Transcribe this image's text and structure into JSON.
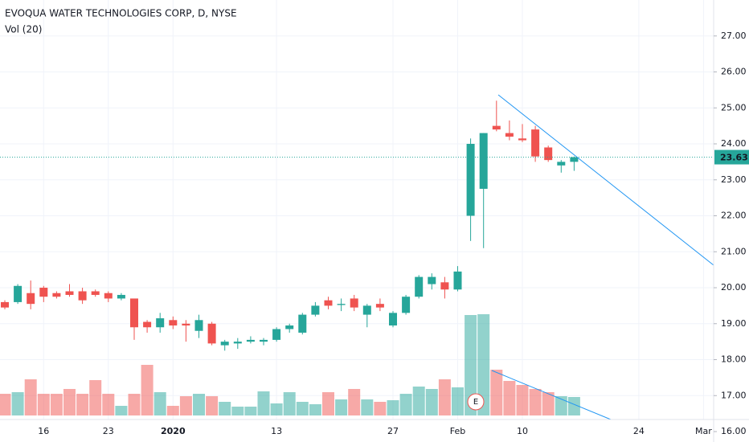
{
  "chart_data": {
    "type": "candlestick",
    "title": "EVOQUA WATER TECHNOLOGIES CORP, D, NYSE",
    "volume_label": "Vol (20)",
    "earnings_marker": "E",
    "up_color": "#26a69a",
    "down_color": "#ef5350",
    "trendline_color": "#2196f3",
    "grid": true,
    "categories": [
      null,
      null,
      null,
      "16",
      null,
      null,
      null,
      null,
      "23",
      null,
      null,
      null,
      null,
      "2020",
      null,
      null,
      null,
      null,
      null,
      null,
      null,
      "13",
      null,
      null,
      null,
      null,
      null,
      null,
      null,
      null,
      "27",
      null,
      null,
      null,
      null,
      "Feb",
      null,
      null,
      null,
      null,
      "10",
      null,
      null,
      null,
      null,
      null,
      null,
      null,
      null,
      "24",
      null,
      null,
      null,
      null,
      "Mar"
    ],
    "open": [
      19.6,
      19.6,
      19.85,
      20.0,
      19.85,
      19.9,
      19.9,
      19.9,
      19.85,
      19.7,
      19.7,
      19.05,
      18.9,
      19.1,
      19.0,
      18.8,
      19.0,
      18.4,
      18.45,
      18.5,
      18.5,
      18.55,
      18.85,
      18.75,
      19.25,
      19.65,
      19.52,
      19.7,
      19.25,
      19.55,
      18.95,
      19.3,
      19.75,
      20.1,
      20.15,
      19.95,
      22.0,
      22.75,
      24.5,
      24.3,
      24.15,
      24.4,
      23.9,
      23.4,
      23.5,
      null,
      null,
      null,
      null,
      null,
      null,
      null,
      null,
      null,
      null
    ],
    "high": [
      19.65,
      20.1,
      20.2,
      20.05,
      19.9,
      20.1,
      20.0,
      19.95,
      19.9,
      19.85,
      19.7,
      19.1,
      19.3,
      19.2,
      19.1,
      19.25,
      19.05,
      18.55,
      18.6,
      18.65,
      18.6,
      18.9,
      19.0,
      19.3,
      19.6,
      19.75,
      19.7,
      19.8,
      19.55,
      19.7,
      19.35,
      19.8,
      20.35,
      20.4,
      20.3,
      20.6,
      24.15,
      24.3,
      25.2,
      24.65,
      24.55,
      24.5,
      23.95,
      23.55,
      23.65,
      null,
      null,
      null,
      null,
      null,
      null,
      null,
      null,
      null,
      null
    ],
    "low": [
      19.4,
      19.55,
      19.4,
      19.6,
      19.7,
      19.75,
      19.55,
      19.75,
      19.6,
      19.65,
      18.55,
      18.75,
      18.75,
      18.85,
      18.5,
      18.6,
      18.4,
      18.25,
      18.3,
      18.45,
      18.4,
      18.5,
      18.75,
      18.7,
      19.2,
      19.4,
      19.35,
      19.35,
      18.9,
      19.35,
      18.9,
      19.25,
      19.7,
      19.95,
      19.7,
      19.9,
      21.3,
      21.1,
      24.35,
      24.1,
      24.05,
      23.5,
      23.5,
      23.2,
      23.25,
      null,
      null,
      null,
      null,
      null,
      null,
      null,
      null,
      null,
      null
    ],
    "close": [
      19.45,
      20.05,
      19.55,
      19.75,
      19.75,
      19.8,
      19.65,
      19.8,
      19.7,
      19.8,
      18.9,
      18.9,
      19.15,
      18.95,
      18.95,
      19.1,
      18.45,
      18.5,
      18.5,
      18.55,
      18.55,
      18.85,
      18.95,
      19.25,
      19.5,
      19.5,
      19.55,
      19.45,
      19.5,
      19.45,
      19.3,
      19.75,
      20.3,
      20.3,
      19.95,
      20.45,
      24.0,
      24.3,
      24.4,
      24.2,
      24.1,
      23.65,
      23.55,
      23.5,
      23.63,
      null,
      null,
      null,
      null,
      null,
      null,
      null,
      null,
      null,
      null
    ],
    "volume": [
      270,
      290,
      450,
      270,
      270,
      330,
      270,
      440,
      270,
      120,
      270,
      630,
      290,
      120,
      240,
      270,
      240,
      170,
      110,
      110,
      300,
      150,
      290,
      170,
      140,
      290,
      200,
      330,
      200,
      170,
      190,
      270,
      360,
      330,
      450,
      350,
      1250,
      1260,
      570,
      430,
      380,
      330,
      290,
      240,
      230,
      null,
      null,
      null,
      null,
      null,
      null,
      null,
      null,
      null,
      null
    ],
    "last_price": 23.63,
    "ylim": [
      15.71,
      28.0
    ],
    "yticks": [
      {
        "value": 16,
        "label": "16.00"
      },
      {
        "value": 17,
        "label": "17.00"
      },
      {
        "value": 18,
        "label": "18.00"
      },
      {
        "value": 19,
        "label": "19.00"
      },
      {
        "value": 20,
        "label": "20.00"
      },
      {
        "value": 21,
        "label": "21.00"
      },
      {
        "value": 22,
        "label": "22.00"
      },
      {
        "value": 23,
        "label": "23.00"
      },
      {
        "value": 24,
        "label": "24.00"
      },
      {
        "value": 25,
        "label": "25.00"
      },
      {
        "value": 26,
        "label": "26.00"
      },
      {
        "value": 27,
        "label": "27.00"
      }
    ]
  }
}
